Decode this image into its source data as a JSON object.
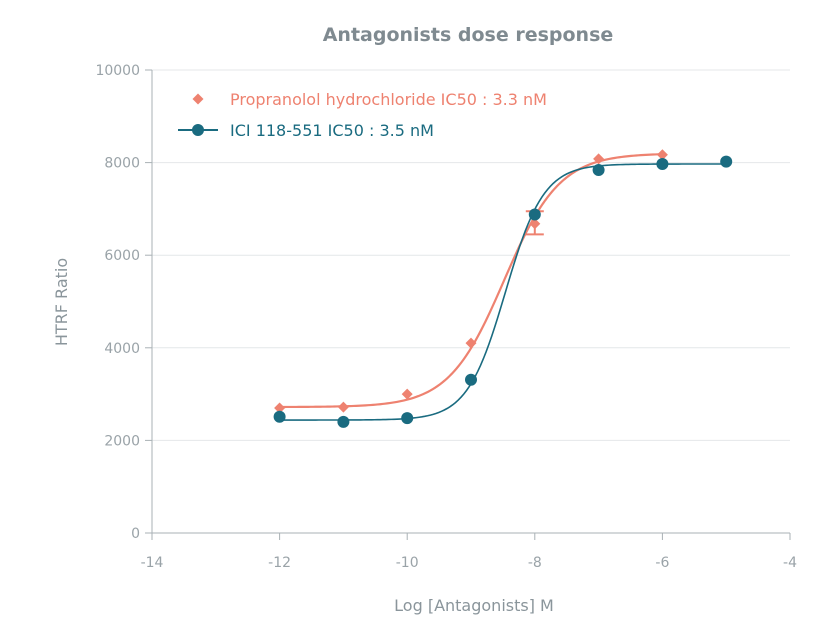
{
  "chart_data": {
    "type": "scatter",
    "title": "Antagonists dose response",
    "xlabel": "Log [Antagonists] M",
    "ylabel": "HTRF Ratio",
    "xlim": [
      -14,
      -4
    ],
    "ylim": [
      0,
      10000
    ],
    "x_ticks": [
      -14,
      -12,
      -10,
      -8,
      -6,
      -4
    ],
    "y_ticks": [
      0,
      2000,
      4000,
      6000,
      8000,
      10000
    ],
    "grid": "horizontal",
    "legend_position": "top-left",
    "series": [
      {
        "name": "Propranolol hydrochloride IC50 : 3.3 nM",
        "color": "#ee8270",
        "marker": "diamond",
        "x": [
          -12,
          -11,
          -10,
          -9,
          -8,
          -7,
          -6
        ],
        "y": [
          2700,
          2720,
          3000,
          4100,
          6680,
          8080,
          8170
        ],
        "error_bars": [
          {
            "x": -8,
            "low": 6450,
            "high": 6950
          }
        ],
        "fit": {
          "bottom": 2720,
          "top": 8200,
          "log_ic50": -8.48,
          "hill": 1.0
        }
      },
      {
        "name": "ICI 118-551 IC50 : 3.5 nM",
        "color": "#1a6b80",
        "marker": "circle",
        "x": [
          -12,
          -11,
          -10,
          -9,
          -8,
          -7,
          -6,
          -5
        ],
        "y": [
          2510,
          2400,
          2480,
          3310,
          6880,
          7840,
          7970,
          8020
        ],
        "fit": {
          "bottom": 2440,
          "top": 7970,
          "log_ic50": -8.46,
          "hill": 1.45
        }
      }
    ]
  }
}
